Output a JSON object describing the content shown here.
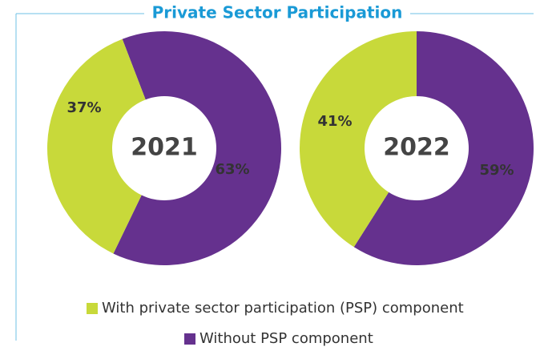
{
  "title": "Private Sector Participation",
  "chart_data": [
    {
      "type": "donut",
      "center_label": "2021",
      "categories": [
        "With private sector participation (PSP) component",
        "Without PSP component"
      ],
      "values": [
        37,
        63
      ],
      "value_labels": [
        "37%",
        "63%"
      ],
      "colors": [
        "#c8d93a",
        "#65318e"
      ]
    },
    {
      "type": "donut",
      "center_label": "2022",
      "categories": [
        "With private sector participation (PSP) component",
        "Without PSP component"
      ],
      "values": [
        41,
        59
      ],
      "value_labels": [
        "41%",
        "59%"
      ],
      "colors": [
        "#c8d93a",
        "#65318e"
      ]
    }
  ]
}
